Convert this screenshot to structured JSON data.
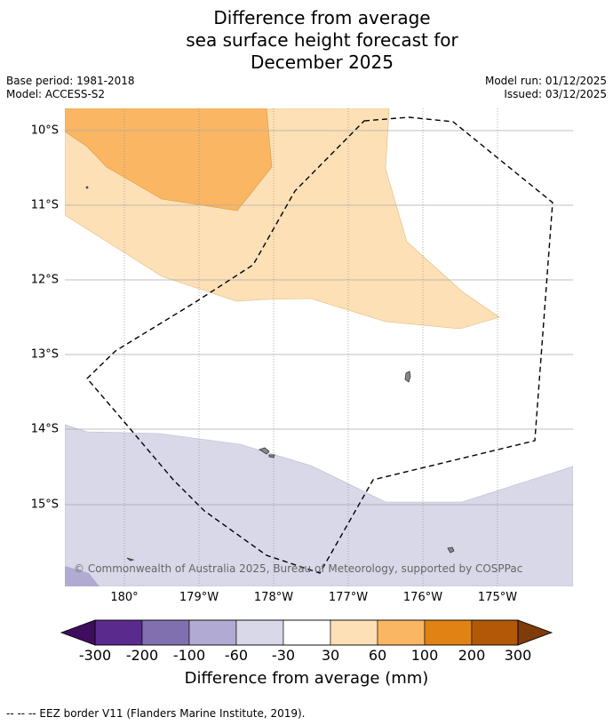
{
  "title": {
    "line1": "Difference from average",
    "line2": "sea surface height forecast for",
    "line3": "December 2025"
  },
  "meta": {
    "base_period": "Base period: 1981-2018",
    "model": "Model: ACCESS-S2",
    "model_run": "Model run: 01/12/2025",
    "issued": "Issued: 03/12/2025"
  },
  "map": {
    "lat_labels": [
      "10°S",
      "11°S",
      "12°S",
      "13°S",
      "14°S",
      "15°S"
    ],
    "lon_labels": [
      "180°",
      "179°W",
      "178°W",
      "177°W",
      "176°W",
      "175°W"
    ],
    "copyright": "© Commonwealth of Australia 2025, Bureau of Meteorology, supported by COSPPac",
    "colors": {
      "band_30_60": "#fde0b6",
      "band_60_100": "#fab662",
      "band_neg60_neg30": "#d8d8e9",
      "band_neg100_neg60": "#b1aad2",
      "land": "#888888",
      "eez": "#000000",
      "grid": "#999999"
    }
  },
  "colorbar": {
    "ticks": [
      "-300",
      "-200",
      "-100",
      "-60",
      "-30",
      "30",
      "60",
      "100",
      "200",
      "300"
    ],
    "colors": [
      "#3f0d5e",
      "#5a2a8c",
      "#8170af",
      "#b1aad2",
      "#d8d8e9",
      "#ffffff",
      "#fde0b6",
      "#fab662",
      "#e08214",
      "#b35806",
      "#7f3b08"
    ],
    "label": "Difference from average (mm)"
  },
  "footer": {
    "eez_note": "--  --  -- EEZ border V11 (Flanders Marine Institute, 2019)."
  }
}
